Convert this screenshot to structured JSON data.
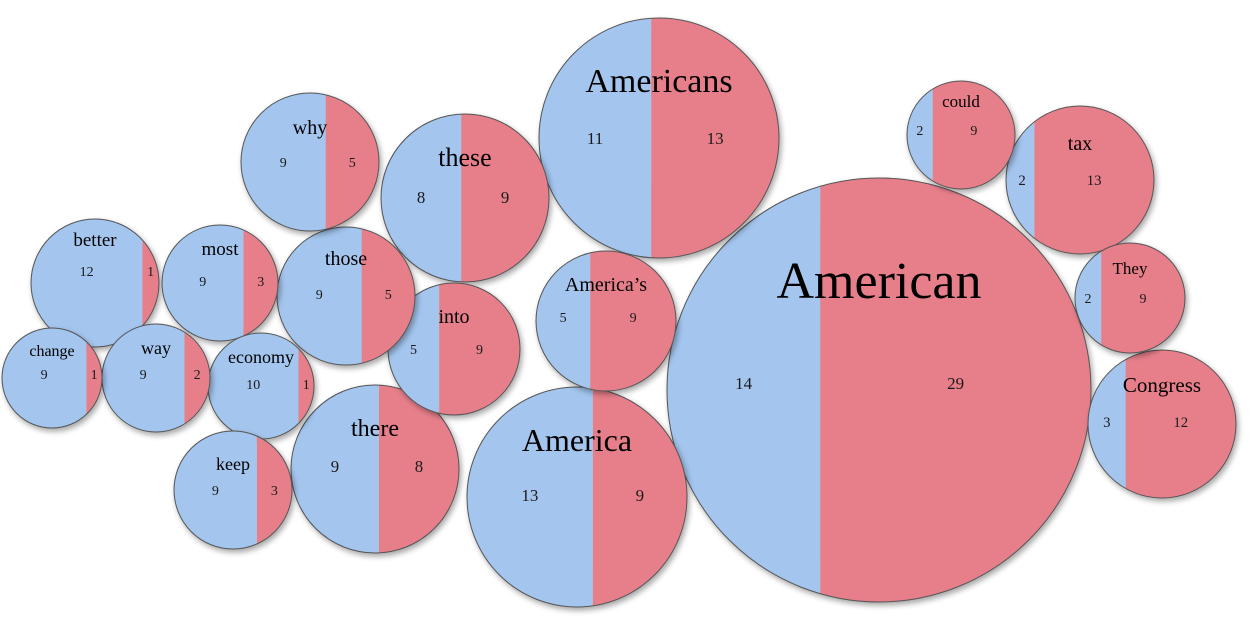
{
  "colors": {
    "left": "#a3c5ee",
    "right": "#e77f8b",
    "stroke": "#555555"
  },
  "chart_data": {
    "type": "bubble-split",
    "series": [
      {
        "name": "",
        "color": "#a3c5ee"
      },
      {
        "name": "",
        "color": "#e77f8b"
      }
    ],
    "bubbles": [
      {
        "word": "American",
        "left": 14,
        "right": 29
      },
      {
        "word": "Americans",
        "left": 11,
        "right": 13
      },
      {
        "word": "America",
        "left": 13,
        "right": 9
      },
      {
        "word": "these",
        "left": 8,
        "right": 9
      },
      {
        "word": "there",
        "left": 9,
        "right": 8
      },
      {
        "word": "America’s",
        "left": 5,
        "right": 9
      },
      {
        "word": "into",
        "left": 5,
        "right": 9
      },
      {
        "word": "those",
        "left": 9,
        "right": 5
      },
      {
        "word": "why",
        "left": 9,
        "right": 5
      },
      {
        "word": "better",
        "left": 12,
        "right": 1
      },
      {
        "word": "most",
        "left": 9,
        "right": 3
      },
      {
        "word": "tax",
        "left": 2,
        "right": 13
      },
      {
        "word": "Congress",
        "left": 3,
        "right": 12
      },
      {
        "word": "economy",
        "left": 10,
        "right": 1
      },
      {
        "word": "keep",
        "left": 9,
        "right": 3
      },
      {
        "word": "way",
        "left": 9,
        "right": 2
      },
      {
        "word": "change",
        "left": 9,
        "right": 1
      },
      {
        "word": "could",
        "left": 2,
        "right": 9
      },
      {
        "word": "They",
        "left": 2,
        "right": 9
      }
    ]
  }
}
